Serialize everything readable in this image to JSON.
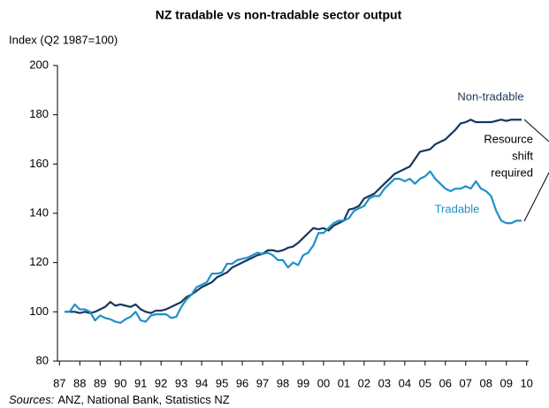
{
  "chart_data": {
    "type": "line",
    "title": "NZ tradable vs non-tradable sector output",
    "ylabel": "Index (Q2 1987=100)",
    "sources_label": "Sources:",
    "sources": "ANZ, National Bank, Statistics NZ",
    "annotations": {
      "non_tradable": "Non-tradable",
      "tradable": "Tradable",
      "shift": [
        "Resource",
        "shift",
        "required"
      ]
    },
    "xlim": [
      1986.9,
      2010.1
    ],
    "ylim": [
      80,
      200
    ],
    "yticks": [
      80,
      100,
      120,
      140,
      160,
      180,
      200
    ],
    "xticks": [
      {
        "value": 1987,
        "label": "87"
      },
      {
        "value": 1988,
        "label": "88"
      },
      {
        "value": 1989,
        "label": "89"
      },
      {
        "value": 1990,
        "label": "90"
      },
      {
        "value": 1991,
        "label": "91"
      },
      {
        "value": 1992,
        "label": "92"
      },
      {
        "value": 1993,
        "label": "93"
      },
      {
        "value": 1994,
        "label": "94"
      },
      {
        "value": 1995,
        "label": "95"
      },
      {
        "value": 1996,
        "label": "96"
      },
      {
        "value": 1997,
        "label": "97"
      },
      {
        "value": 1998,
        "label": "98"
      },
      {
        "value": 1999,
        "label": "99"
      },
      {
        "value": 2000,
        "label": "00"
      },
      {
        "value": 2001,
        "label": "01"
      },
      {
        "value": 2002,
        "label": "02"
      },
      {
        "value": 2003,
        "label": "03"
      },
      {
        "value": 2004,
        "label": "04"
      },
      {
        "value": 2005,
        "label": "05"
      },
      {
        "value": 2006,
        "label": "06"
      },
      {
        "value": 2007,
        "label": "07"
      },
      {
        "value": 2008,
        "label": "08"
      },
      {
        "value": 2009,
        "label": "09"
      },
      {
        "value": 2010,
        "label": "10"
      }
    ],
    "grid": false,
    "x": [
      1987.25,
      1987.5,
      1987.75,
      1988,
      1988.25,
      1988.5,
      1988.75,
      1989,
      1989.25,
      1989.5,
      1989.75,
      1990,
      1990.25,
      1990.5,
      1990.75,
      1991,
      1991.25,
      1991.5,
      1991.75,
      1992,
      1992.25,
      1992.5,
      1992.75,
      1993,
      1993.25,
      1993.5,
      1993.75,
      1994,
      1994.25,
      1994.5,
      1994.75,
      1995,
      1995.25,
      1995.5,
      1995.75,
      1996,
      1996.25,
      1996.5,
      1996.75,
      1997,
      1997.25,
      1997.5,
      1997.75,
      1998,
      1998.25,
      1998.5,
      1998.75,
      1999,
      1999.25,
      1999.5,
      1999.75,
      2000,
      2000.25,
      2000.5,
      2000.75,
      2001,
      2001.25,
      2001.5,
      2001.75,
      2002,
      2002.25,
      2002.5,
      2002.75,
      2003,
      2003.25,
      2003.5,
      2003.75,
      2004,
      2004.25,
      2004.5,
      2004.75,
      2005,
      2005.25,
      2005.5,
      2005.75,
      2006,
      2006.25,
      2006.5,
      2006.75,
      2007,
      2007.25,
      2007.5,
      2007.75,
      2008,
      2008.25,
      2008.5,
      2008.75,
      2009,
      2009.25,
      2009.5,
      2009.75
    ],
    "series": [
      {
        "name": "Non-tradable",
        "color": "#17375e",
        "values": [
          100,
          100,
          100,
          99.5,
          100,
          99.5,
          100,
          101,
          102,
          104,
          102.5,
          103,
          102.5,
          102,
          103,
          101,
          100,
          99.5,
          100.5,
          100.5,
          101,
          102,
          103,
          104,
          106,
          107,
          108.5,
          110,
          111,
          112,
          114,
          115,
          116,
          118,
          119,
          120,
          121,
          122,
          123,
          123.5,
          125,
          125,
          124.5,
          125,
          126,
          126.5,
          128,
          130,
          132,
          134,
          133.5,
          134,
          133,
          135,
          136,
          137,
          141.5,
          142,
          143,
          146,
          147,
          148,
          150,
          152,
          154,
          156,
          157,
          158,
          159,
          162,
          165,
          165.5,
          166,
          168,
          169,
          170,
          172,
          174,
          176.5,
          177,
          178,
          177,
          177,
          177,
          177,
          177.5,
          178,
          177.5,
          178,
          178,
          178
        ]
      },
      {
        "name": "Tradable",
        "color": "#1f90c8",
        "values": [
          100,
          100,
          103,
          101,
          101,
          100,
          96.5,
          98.5,
          97.5,
          97,
          96,
          95.5,
          97,
          98,
          100,
          96.5,
          96,
          98.5,
          99,
          99,
          99,
          97.5,
          98,
          102,
          105,
          107,
          110,
          111,
          112,
          115.5,
          115.5,
          116,
          119.5,
          119.5,
          121,
          121.5,
          122,
          123,
          124,
          123.5,
          124,
          123,
          121,
          121,
          118,
          120,
          119,
          123,
          124,
          127,
          132,
          132,
          134,
          136,
          137,
          137,
          138,
          141,
          142,
          143,
          146,
          147,
          147,
          150,
          152,
          154,
          154,
          153,
          154,
          152,
          154,
          155,
          157,
          154,
          152,
          150,
          149,
          150,
          150,
          151,
          150,
          153,
          150,
          149,
          147,
          141,
          137,
          136,
          136,
          137,
          137
        ]
      }
    ]
  }
}
